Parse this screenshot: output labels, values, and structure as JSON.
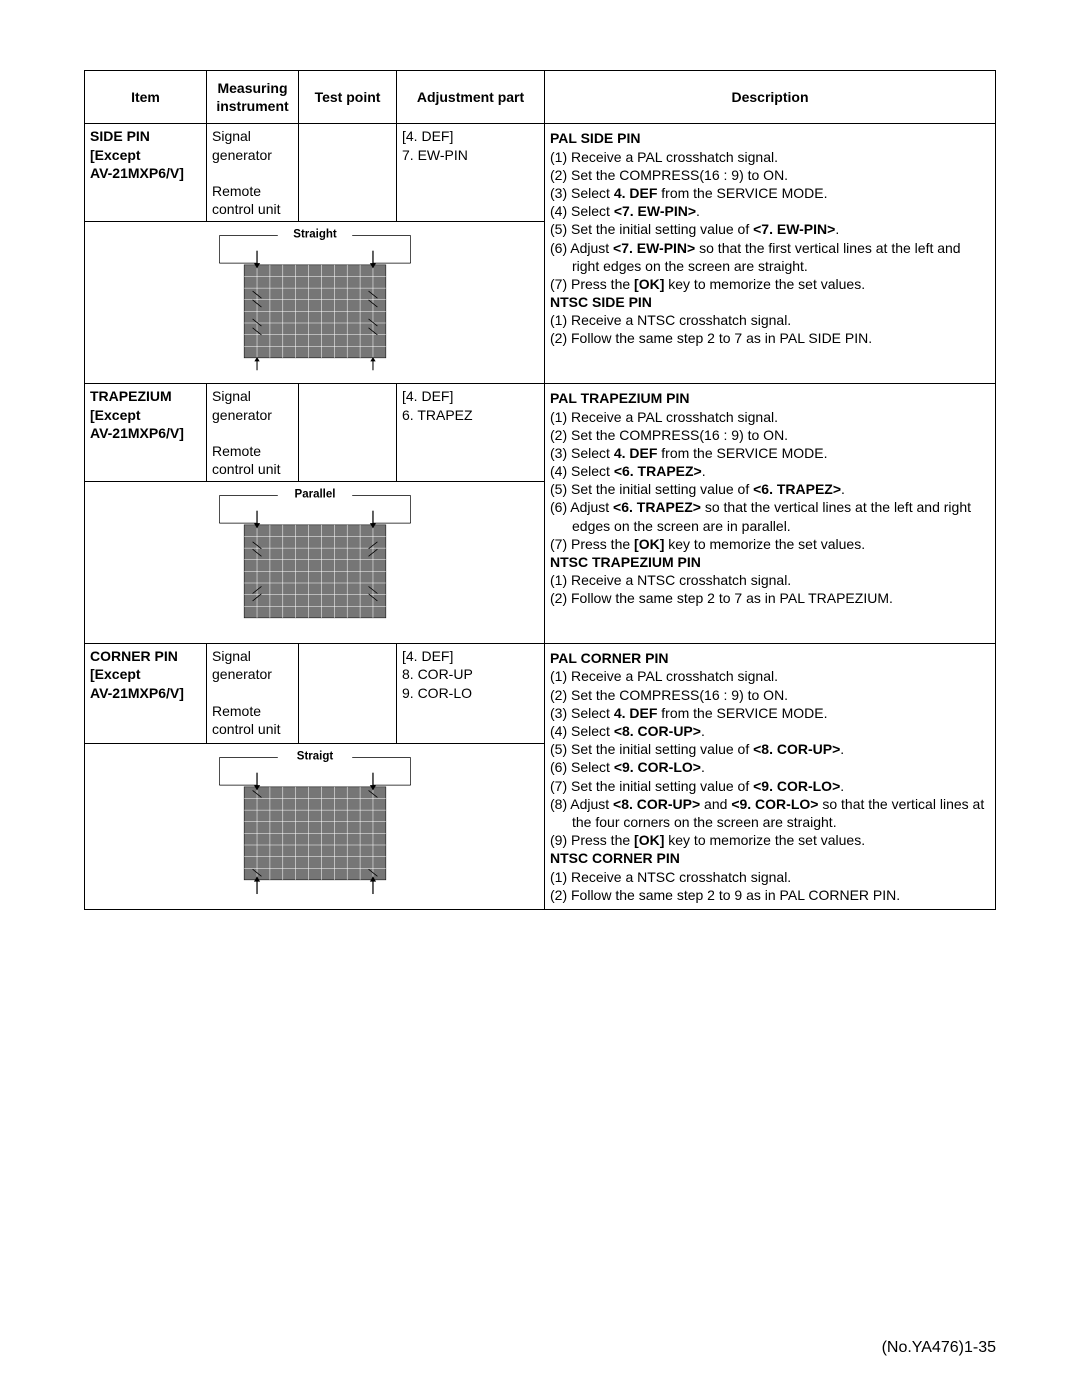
{
  "colors": {
    "screen_fill": "#767676",
    "arrow_stroke": "#000000",
    "border": "#000000",
    "text": "#000000",
    "background": "#ffffff"
  },
  "fonts": {
    "body_size_pt": 11,
    "header_weight": "bold"
  },
  "headers": {
    "item": "Item",
    "instrument": "Measuring instrument",
    "test_point": "Test point",
    "adjustment": "Adjustment part",
    "description": "Description"
  },
  "rows": [
    {
      "item_line1": "SIDE PIN",
      "item_line2": "[Except",
      "item_line3": "AV-21MXP6/V]",
      "instrument_line1": "Signal",
      "instrument_line2": "generator",
      "instrument_line3": "",
      "instrument_line4": "Remote",
      "instrument_line5": "control unit",
      "test_point": "",
      "adj_line1": "[4. DEF]",
      "adj_line2": "7. EW-PIN",
      "adj_line3": "",
      "diagram_label": "Straight",
      "diagram_type": "sidepin",
      "desc": {
        "pal_title": "PAL SIDE PIN",
        "pal_1": "(1) Receive a PAL crosshatch signal.",
        "pal_2": "(2) Set  the COMPRESS(16 : 9) to ON.",
        "pal_3a": "(3) Select ",
        "pal_3b": "4. DEF",
        "pal_3c": " from the SERVICE MODE.",
        "pal_4a": "(4) Select ",
        "pal_4b": "<7. EW-PIN>",
        "pal_4c": ".",
        "pal_5a": "(5) Set the initial setting value of ",
        "pal_5b": "<7. EW-PIN>",
        "pal_5c": ".",
        "pal_6a": "(6) Adjust ",
        "pal_6b": "<7. EW-PIN>",
        "pal_6c": " so that the first vertical lines at the left and right edges on the screen are straight.",
        "pal_7a": "(7) Press the ",
        "pal_7b": "[OK]",
        "pal_7c": " key to memorize the set values.",
        "ntsc_title": "NTSC SIDE PIN",
        "ntsc_1": "(1) Receive a NTSC crosshatch signal.",
        "ntsc_2": "(2) Follow the same step 2 to 7 as in PAL SIDE PIN."
      }
    },
    {
      "item_line1": "TRAPEZIUM",
      "item_line2": "[Except",
      "item_line3": "AV-21MXP6/V]",
      "instrument_line1": "Signal",
      "instrument_line2": "generator",
      "instrument_line3": "",
      "instrument_line4": "Remote",
      "instrument_line5": "control unit",
      "test_point": "",
      "adj_line1": "[4. DEF]",
      "adj_line2": "6. TRAPEZ",
      "adj_line3": "",
      "diagram_label": "Parallel",
      "diagram_type": "trapezium",
      "desc": {
        "pal_title": "PAL TRAPEZIUM PIN",
        "pal_1": "(1) Receive a PAL crosshatch signal.",
        "pal_2": "(2) Set  the COMPRESS(16 : 9) to ON.",
        "pal_3a": "(3) Select ",
        "pal_3b": "4. DEF",
        "pal_3c": " from the SERVICE MODE.",
        "pal_4a": "(4) Select ",
        "pal_4b": "<6. TRAPEZ>",
        "pal_4c": ".",
        "pal_5a": "(5) Set the initial setting value of ",
        "pal_5b": "<6. TRAPEZ>",
        "pal_5c": ".",
        "pal_6a": "(6) Adjust ",
        "pal_6b": "<6. TRAPEZ>",
        "pal_6c": " so that the vertical lines at the left and right edges on the screen are in parallel.",
        "pal_7a": "(7) Press the ",
        "pal_7b": "[OK]",
        "pal_7c": " key to memorize the set values.",
        "ntsc_title": "NTSC TRAPEZIUM PIN",
        "ntsc_1": "(1) Receive a NTSC crosshatch signal.",
        "ntsc_2": "(2) Follow the same step 2 to 7 as in PAL TRAPEZIUM."
      }
    },
    {
      "item_line1": "CORNER PIN",
      "item_line2": "[Except",
      "item_line3": "AV-21MXP6/V]",
      "instrument_line1": "Signal",
      "instrument_line2": "generator",
      "instrument_line3": "",
      "instrument_line4": "Remote",
      "instrument_line5": "control unit",
      "test_point": "",
      "adj_line1": "[4. DEF]",
      "adj_line2": "8. COR-UP",
      "adj_line3": "9. COR-LO",
      "diagram_label": "Straigt",
      "diagram_type": "corner",
      "desc": {
        "pal_title": "PAL CORNER PIN",
        "pal_1": "(1) Receive a PAL crosshatch signal.",
        "pal_2": "(2) Set  the COMPRESS(16 : 9) to ON.",
        "pal_3a": "(3) Select ",
        "pal_3b": "4. DEF",
        "pal_3c": " from the SERVICE MODE.",
        "pal_4a": "(4) Select ",
        "pal_4b": "<8. COR-UP>",
        "pal_4c": ".",
        "pal_5a": "(5) Set the initial setting value of ",
        "pal_5b": "<8. COR-UP>",
        "pal_5c": ".",
        "pal_6a": "(6) Select ",
        "pal_6b": "<9. COR-LO>",
        "pal_6c": ".",
        "pal_7a": "(7) Set the initial setting value of ",
        "pal_7b": "<9. COR-LO>",
        "pal_7c": ".",
        "pal_8a": "(8) Adjust ",
        "pal_8b": "<8. COR-UP>",
        "pal_8c": " and ",
        "pal_8d": "<9. COR-LO>",
        "pal_8e": " so that the vertical lines at the four corners on the screen are straight.",
        "pal_9a": "(9) Press the ",
        "pal_9b": "[OK]",
        "pal_9c": " key to memorize the set values.",
        "ntsc_title": "NTSC CORNER PIN",
        "ntsc_1": "(1) Receive a NTSC crosshatch signal.",
        "ntsc_2": "(2) Follow the same step 2 to 9 as in PAL CORNER PIN."
      }
    }
  ],
  "footer": "(No.YA476)1-35"
}
